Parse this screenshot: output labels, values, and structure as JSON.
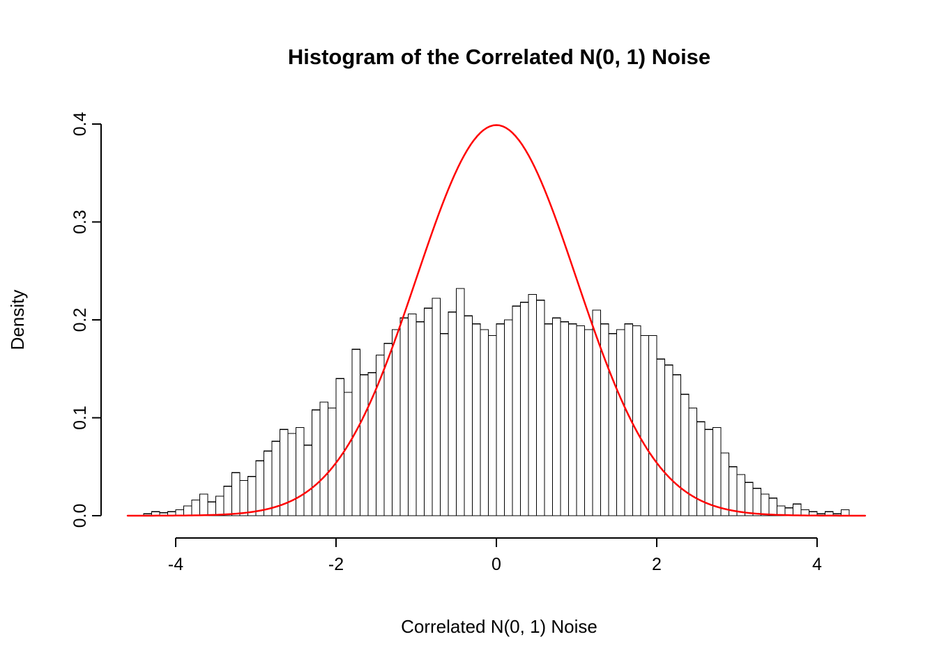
{
  "chart_data": {
    "type": "bar",
    "subtype": "histogram_with_density_curve",
    "title": "Histogram of the Correlated N(0, 1) Noise",
    "xlabel": "Correlated N(0, 1) Noise",
    "ylabel": "Density",
    "xlim": [
      -4.6,
      4.6
    ],
    "ylim": [
      0,
      0.4
    ],
    "xticks": [
      -4,
      -2,
      0,
      2,
      4
    ],
    "xtick_labels": [
      "-4",
      "-2",
      "0",
      "2",
      "4"
    ],
    "yticks": [
      0.0,
      0.1,
      0.2,
      0.3,
      0.4
    ],
    "ytick_labels": [
      "0.0",
      "0.1",
      "0.2",
      "0.3",
      "0.4"
    ],
    "bin_start": -4.4,
    "bin_width": 0.1,
    "densities": [
      0.002,
      0.004,
      0.003,
      0.004,
      0.006,
      0.01,
      0.016,
      0.022,
      0.014,
      0.02,
      0.03,
      0.044,
      0.036,
      0.04,
      0.056,
      0.066,
      0.076,
      0.088,
      0.084,
      0.09,
      0.072,
      0.108,
      0.116,
      0.11,
      0.14,
      0.126,
      0.17,
      0.144,
      0.146,
      0.164,
      0.176,
      0.19,
      0.202,
      0.206,
      0.198,
      0.212,
      0.222,
      0.186,
      0.208,
      0.232,
      0.204,
      0.196,
      0.19,
      0.184,
      0.196,
      0.2,
      0.214,
      0.218,
      0.226,
      0.22,
      0.196,
      0.202,
      0.198,
      0.196,
      0.194,
      0.19,
      0.21,
      0.196,
      0.186,
      0.19,
      0.196,
      0.194,
      0.184,
      0.184,
      0.16,
      0.154,
      0.144,
      0.124,
      0.11,
      0.096,
      0.088,
      0.09,
      0.064,
      0.05,
      0.042,
      0.034,
      0.028,
      0.022,
      0.018,
      0.01,
      0.008,
      0.012,
      0.006,
      0.004,
      0.002,
      0.004,
      0.002,
      0.006
    ],
    "bar_fill": "#ffffff",
    "bar_stroke": "#000000",
    "axis_color": "#000000",
    "overlay_curve": {
      "description": "standard normal density N(0,1)",
      "mean": 0,
      "sd": 1,
      "peak_density": 0.3989,
      "color": "#ff0000"
    },
    "legend": "none",
    "grid": false
  }
}
